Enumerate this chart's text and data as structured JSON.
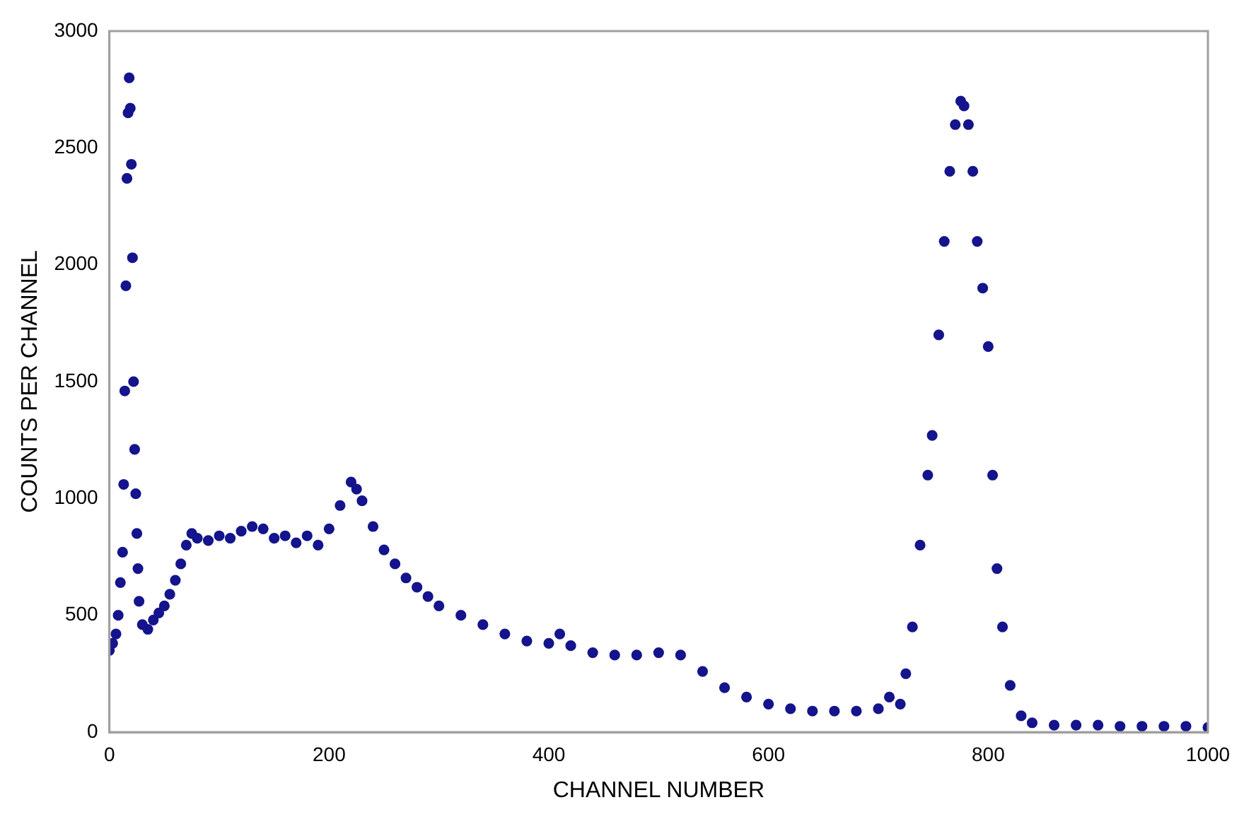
{
  "chart_data": {
    "type": "scatter",
    "xlabel": "CHANNEL NUMBER",
    "ylabel": "COUNTS PER CHANNEL",
    "xlim": [
      0,
      1000
    ],
    "xticks": [
      0,
      200,
      400,
      600,
      800,
      1000
    ],
    "ylim": [
      0,
      3000
    ],
    "yticks": [
      0,
      500,
      1000,
      1500,
      2000,
      2500,
      3000
    ],
    "grid": false,
    "legend": false,
    "marker": "circle",
    "series": [
      {
        "color": "#14148c",
        "x": [
          0,
          3,
          6,
          8,
          10,
          12,
          13,
          14,
          15,
          16,
          17,
          18,
          19,
          20,
          21,
          22,
          23,
          24,
          25,
          26,
          27,
          30,
          35,
          40,
          45,
          50,
          55,
          60,
          65,
          70,
          75,
          80,
          90,
          100,
          110,
          120,
          130,
          140,
          150,
          160,
          170,
          180,
          190,
          200,
          210,
          220,
          225,
          230,
          240,
          250,
          260,
          270,
          280,
          290,
          300,
          320,
          340,
          360,
          380,
          400,
          410,
          420,
          440,
          460,
          480,
          500,
          520,
          540,
          560,
          580,
          600,
          620,
          640,
          660,
          680,
          700,
          710,
          720,
          725,
          731,
          738,
          745,
          749,
          755,
          760,
          765,
          770,
          775,
          778,
          782,
          786,
          790,
          795,
          800,
          804,
          808,
          813,
          820,
          830,
          840,
          860,
          880,
          900,
          920,
          940,
          960,
          980,
          1000
        ],
        "values": [
          350,
          380,
          420,
          500,
          640,
          770,
          1060,
          1460,
          1910,
          2370,
          2650,
          2800,
          2670,
          2430,
          2030,
          1500,
          1210,
          1020,
          850,
          700,
          560,
          460,
          440,
          480,
          510,
          540,
          590,
          650,
          720,
          800,
          850,
          830,
          820,
          840,
          830,
          860,
          880,
          870,
          830,
          840,
          810,
          840,
          800,
          870,
          970,
          1070,
          1040,
          990,
          880,
          780,
          720,
          660,
          620,
          580,
          540,
          500,
          460,
          420,
          390,
          380,
          420,
          370,
          340,
          330,
          330,
          340,
          330,
          260,
          190,
          150,
          120,
          100,
          90,
          90,
          90,
          100,
          150,
          120,
          250,
          450,
          800,
          1100,
          1270,
          1700,
          2100,
          2400,
          2600,
          2700,
          2680,
          2600,
          2400,
          2100,
          1900,
          1650,
          1100,
          700,
          450,
          200,
          70,
          40,
          30,
          30,
          30,
          25,
          25,
          25,
          25,
          20
        ]
      }
    ]
  }
}
